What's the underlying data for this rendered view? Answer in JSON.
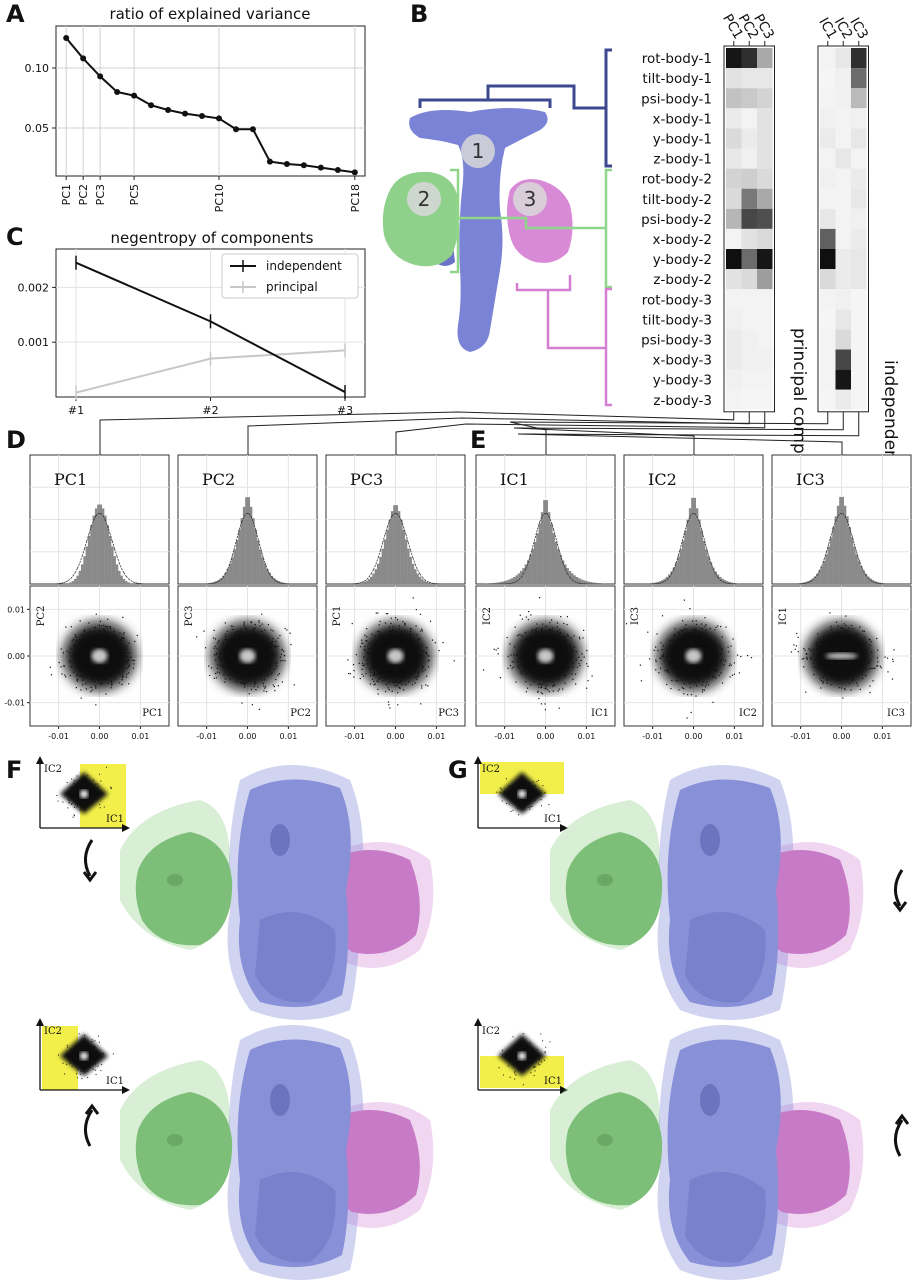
{
  "panels": {
    "A": "A",
    "B": "B",
    "C": "C",
    "D": "D",
    "E": "E",
    "F": "F",
    "G": "G"
  },
  "chart_data": [
    {
      "id": "A",
      "type": "line",
      "title": "ratio of explained variance",
      "x": [
        1,
        2,
        3,
        4,
        5,
        6,
        7,
        8,
        9,
        10,
        11,
        12,
        13,
        14,
        15,
        16,
        17,
        18
      ],
      "values": [
        0.125,
        0.108,
        0.093,
        0.08,
        0.077,
        0.069,
        0.065,
        0.062,
        0.06,
        0.058,
        0.049,
        0.049,
        0.022,
        0.02,
        0.019,
        0.017,
        0.015,
        0.013
      ],
      "xtick_labels": [
        "PC1",
        "PC2",
        "PC3",
        "PC5",
        "PC10",
        "PC18"
      ],
      "xtick_positions": [
        1,
        2,
        3,
        5,
        10,
        18
      ],
      "ytick_labels": [
        "0.05",
        "0.10"
      ],
      "ytick_values": [
        0.05,
        0.1
      ],
      "ylim": [
        0.01,
        0.135
      ],
      "grid": true
    },
    {
      "id": "C",
      "type": "line",
      "title": "negentropy of components",
      "categories": [
        "#1",
        "#2",
        "#3"
      ],
      "series": [
        {
          "name": "independent",
          "values": [
            0.00245,
            0.00138,
            9e-05
          ],
          "color": "#111111"
        },
        {
          "name": "principal",
          "values": [
            8e-05,
            0.0007,
            0.00085
          ],
          "color": "#c8c8c8"
        }
      ],
      "ytick_labels": [
        "0.001",
        "0.002"
      ],
      "ytick_values": [
        0.001,
        0.002
      ],
      "ylim": [
        0.0,
        0.0027
      ],
      "legend": "top-right",
      "grid": true
    },
    {
      "id": "B",
      "type": "heatmap",
      "rows": [
        "rot-body-1",
        "tilt-body-1",
        "psi-body-1",
        "x-body-1",
        "y-body-1",
        "z-body-1",
        "rot-body-2",
        "tilt-body-2",
        "psi-body-2",
        "x-body-2",
        "y-body-2",
        "z-body-2",
        "rot-body-3",
        "tilt-body-3",
        "psi-body-3",
        "x-body-3",
        "y-body-3",
        "z-body-3"
      ],
      "pc_columns": [
        "PC1",
        "PC2",
        "PC3"
      ],
      "ic_columns": [
        "IC1",
        "IC2",
        "IC3"
      ],
      "pc_values": [
        [
          0.95,
          0.85,
          0.35
        ],
        [
          0.12,
          0.1,
          0.1
        ],
        [
          0.25,
          0.22,
          0.18
        ],
        [
          0.08,
          0.05,
          0.12
        ],
        [
          0.15,
          0.08,
          0.12
        ],
        [
          0.1,
          0.06,
          0.12
        ],
        [
          0.18,
          0.2,
          0.15
        ],
        [
          0.15,
          0.55,
          0.35
        ],
        [
          0.3,
          0.75,
          0.72
        ],
        [
          0.05,
          0.12,
          0.15
        ],
        [
          0.98,
          0.6,
          0.95
        ],
        [
          0.12,
          0.15,
          0.4
        ],
        [
          0.05,
          0.05,
          0.05
        ],
        [
          0.06,
          0.05,
          0.05
        ],
        [
          0.08,
          0.06,
          0.05
        ],
        [
          0.08,
          0.06,
          0.06
        ],
        [
          0.06,
          0.05,
          0.05
        ],
        [
          0.05,
          0.04,
          0.04
        ]
      ],
      "ic_values": [
        [
          0.05,
          0.1,
          0.85
        ],
        [
          0.04,
          0.06,
          0.6
        ],
        [
          0.05,
          0.06,
          0.28
        ],
        [
          0.06,
          0.05,
          0.06
        ],
        [
          0.08,
          0.05,
          0.1
        ],
        [
          0.05,
          0.1,
          0.05
        ],
        [
          0.06,
          0.05,
          0.08
        ],
        [
          0.05,
          0.05,
          0.1
        ],
        [
          0.1,
          0.05,
          0.06
        ],
        [
          0.65,
          0.05,
          0.08
        ],
        [
          0.98,
          0.08,
          0.1
        ],
        [
          0.15,
          0.08,
          0.1
        ],
        [
          0.05,
          0.06,
          0.04
        ],
        [
          0.04,
          0.1,
          0.04
        ],
        [
          0.05,
          0.15,
          0.04
        ],
        [
          0.05,
          0.75,
          0.04
        ],
        [
          0.05,
          0.95,
          0.04
        ],
        [
          0.04,
          0.08,
          0.04
        ]
      ],
      "pc_axis_label": "principal components",
      "ic_axis_label": "independent components"
    },
    {
      "id": "DE",
      "type": "scatter",
      "components": [
        {
          "name": "PC1",
          "ylabel": "PC2",
          "xlabel": "PC1"
        },
        {
          "name": "PC2",
          "ylabel": "PC3",
          "xlabel": "PC2"
        },
        {
          "name": "PC3",
          "ylabel": "PC1",
          "xlabel": "PC3"
        },
        {
          "name": "IC1",
          "ylabel": "IC2",
          "xlabel": "IC1"
        },
        {
          "name": "IC2",
          "ylabel": "IC3",
          "xlabel": "IC2"
        },
        {
          "name": "IC3",
          "ylabel": "IC1",
          "xlabel": "IC3"
        }
      ],
      "xtick_labels": [
        "-0.01",
        "0.00",
        "0.01"
      ],
      "xtick_values": [
        -0.01,
        0.0,
        0.01
      ],
      "ytick_labels": [
        "0.01",
        "0.00",
        "-0.01"
      ],
      "ytick_values": [
        0.01,
        0.0,
        -0.01
      ],
      "xlim": [
        -0.017,
        0.017
      ],
      "ylim": [
        -0.015,
        0.015
      ]
    }
  ],
  "map_labels": [
    "1",
    "2",
    "3"
  ],
  "insets": {
    "F_top": {
      "y": "IC2",
      "x": "IC1"
    },
    "F_bottom": {
      "y": "IC2",
      "x": "IC1"
    },
    "G_top": {
      "y": "IC2",
      "x": "IC1"
    },
    "G_bottom": {
      "y": "IC2",
      "x": "IC1"
    }
  },
  "colors": {
    "body1": "#7b83d6",
    "body2": "#8fd18a",
    "body3": "#d88ad6",
    "highlight": "#f2ef4a",
    "bracket1": "#3d4a8f",
    "bracket2": "#8fd68a",
    "bracket3": "#d47fd2"
  }
}
